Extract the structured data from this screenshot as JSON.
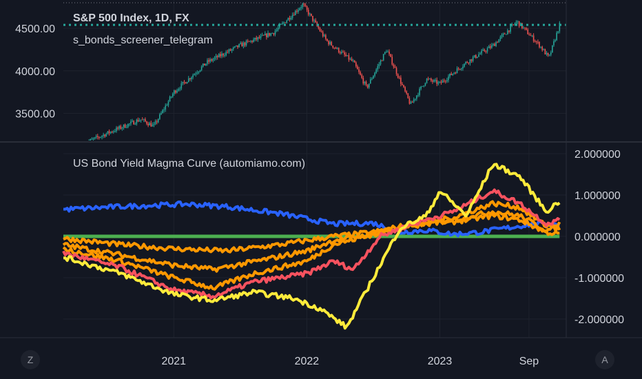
{
  "header": {
    "symbol_title": "S&P 500 Index, 1D, FX",
    "author": "s_bonds_screener_telegram"
  },
  "indicator": {
    "title": "US Bond Yield Magma Curve (automiamo.com)"
  },
  "buttons": {
    "left": "Z",
    "right": "A"
  },
  "colors": {
    "background": "#131722",
    "grid": "#1e222d",
    "up_candle": "#26a69a",
    "down_candle": "#ef5350",
    "price_line": "#26a69a",
    "blue": "#2962ff",
    "green": "#4caf50",
    "orange": "#ff9800",
    "red": "#f7525f",
    "yellow": "#ffeb3b"
  },
  "chart_data": [
    {
      "type": "candlestick",
      "title": "S&P 500 Index, 1D, FX",
      "y_ticks": [
        "3500.00",
        "4000.00",
        "4500.00"
      ],
      "y_tick_values": [
        3500,
        4000,
        4500
      ],
      "ylim": [
        3180,
        4800
      ],
      "last_price": 4540,
      "x_ticks": [
        "2021",
        "2022",
        "2023",
        "Sep"
      ],
      "x_tick_values": [
        2021.0,
        2022.0,
        2023.0,
        2023.67
      ],
      "xlim": [
        2020.17,
        2023.95
      ],
      "price_path": [
        [
          2020.33,
          3150
        ],
        [
          2020.55,
          3300
        ],
        [
          2020.75,
          3430
        ],
        [
          2020.85,
          3350
        ],
        [
          2021.0,
          3750
        ],
        [
          2021.25,
          4100
        ],
        [
          2021.5,
          4300
        ],
        [
          2021.75,
          4450
        ],
        [
          2021.97,
          4780
        ],
        [
          2022.15,
          4350
        ],
        [
          2022.35,
          4100
        ],
        [
          2022.45,
          3800
        ],
        [
          2022.6,
          4250
        ],
        [
          2022.78,
          3600
        ],
        [
          2022.9,
          3900
        ],
        [
          2023.0,
          3850
        ],
        [
          2023.2,
          4100
        ],
        [
          2023.4,
          4300
        ],
        [
          2023.58,
          4580
        ],
        [
          2023.75,
          4300
        ],
        [
          2023.82,
          4150
        ],
        [
          2023.9,
          4540
        ]
      ]
    },
    {
      "type": "line",
      "title": "US Bond Yield Magma Curve (automiamo.com)",
      "y_ticks": [
        "2.000000",
        "1.000000",
        "0.000000",
        "-1.000000",
        "-2.000000"
      ],
      "y_tick_values": [
        2,
        1,
        0,
        -1,
        -2
      ],
      "ylim": [
        -2.45,
        2.25
      ],
      "x_ticks": [
        "2021",
        "2022",
        "2023",
        "Sep"
      ],
      "x_tick_values": [
        2021.0,
        2022.0,
        2023.0,
        2023.67
      ],
      "xlim": [
        2020.17,
        2023.95
      ],
      "series": [
        {
          "color": "#4caf50",
          "points": [
            [
              2020.17,
              0.0
            ],
            [
              2023.9,
              0.0
            ]
          ]
        },
        {
          "color": "#2962ff",
          "points": [
            [
              2020.17,
              0.65
            ],
            [
              2020.6,
              0.72
            ],
            [
              2021.1,
              0.78
            ],
            [
              2021.4,
              0.72
            ],
            [
              2021.8,
              0.55
            ],
            [
              2022.2,
              0.3
            ],
            [
              2022.5,
              0.32
            ],
            [
              2022.7,
              0.1
            ],
            [
              2022.9,
              0.15
            ],
            [
              2023.1,
              0.05
            ],
            [
              2023.3,
              0.1
            ],
            [
              2023.5,
              0.2
            ],
            [
              2023.7,
              0.3
            ],
            [
              2023.9,
              0.3
            ]
          ]
        },
        {
          "color": "#ff9800",
          "points": [
            [
              2020.17,
              -0.05
            ],
            [
              2020.6,
              -0.2
            ],
            [
              2021.0,
              -0.3
            ],
            [
              2021.4,
              -0.35
            ],
            [
              2021.8,
              -0.2
            ],
            [
              2022.2,
              0.0
            ],
            [
              2022.5,
              0.1
            ],
            [
              2022.8,
              0.3
            ],
            [
              2023.1,
              0.35
            ],
            [
              2023.4,
              0.5
            ],
            [
              2023.6,
              0.4
            ],
            [
              2023.8,
              0.1
            ],
            [
              2023.9,
              0.05
            ]
          ]
        },
        {
          "color": "#ff9800",
          "points": [
            [
              2020.17,
              -0.2
            ],
            [
              2020.6,
              -0.45
            ],
            [
              2021.0,
              -0.7
            ],
            [
              2021.3,
              -0.8
            ],
            [
              2021.7,
              -0.55
            ],
            [
              2022.0,
              -0.35
            ],
            [
              2022.2,
              -0.1
            ],
            [
              2022.5,
              0.05
            ],
            [
              2022.8,
              0.25
            ],
            [
              2023.1,
              0.4
            ],
            [
              2023.4,
              0.6
            ],
            [
              2023.6,
              0.5
            ],
            [
              2023.8,
              0.15
            ],
            [
              2023.9,
              0.2
            ]
          ]
        },
        {
          "color": "#ff9800",
          "points": [
            [
              2020.17,
              -0.3
            ],
            [
              2020.6,
              -0.6
            ],
            [
              2021.0,
              -1.0
            ],
            [
              2021.3,
              -1.25
            ],
            [
              2021.6,
              -0.9
            ],
            [
              2022.0,
              -0.6
            ],
            [
              2022.2,
              -0.2
            ],
            [
              2022.5,
              0.05
            ],
            [
              2022.8,
              0.3
            ],
            [
              2023.1,
              0.45
            ],
            [
              2023.4,
              0.8
            ],
            [
              2023.6,
              0.7
            ],
            [
              2023.8,
              0.25
            ],
            [
              2023.9,
              0.3
            ]
          ]
        },
        {
          "color": "#f7525f",
          "points": [
            [
              2020.17,
              -0.4
            ],
            [
              2020.6,
              -0.75
            ],
            [
              2021.0,
              -1.3
            ],
            [
              2021.3,
              -1.45
            ],
            [
              2021.6,
              -1.1
            ],
            [
              2022.0,
              -0.9
            ],
            [
              2022.2,
              -0.6
            ],
            [
              2022.35,
              -0.8
            ],
            [
              2022.55,
              0.0
            ],
            [
              2022.8,
              0.3
            ],
            [
              2023.1,
              0.6
            ],
            [
              2023.4,
              1.1
            ],
            [
              2023.6,
              0.8
            ],
            [
              2023.8,
              0.3
            ],
            [
              2023.9,
              0.4
            ]
          ]
        },
        {
          "color": "#ffeb3b",
          "points": [
            [
              2020.17,
              -0.5
            ],
            [
              2020.6,
              -0.9
            ],
            [
              2021.0,
              -1.4
            ],
            [
              2021.3,
              -1.55
            ],
            [
              2021.6,
              -1.35
            ],
            [
              2021.9,
              -1.5
            ],
            [
              2022.1,
              -1.75
            ],
            [
              2022.3,
              -2.2
            ],
            [
              2022.5,
              -1.0
            ],
            [
              2022.7,
              0.2
            ],
            [
              2022.9,
              0.5
            ],
            [
              2023.0,
              1.1
            ],
            [
              2023.2,
              0.5
            ],
            [
              2023.4,
              1.75
            ],
            [
              2023.6,
              1.45
            ],
            [
              2023.8,
              0.6
            ],
            [
              2023.9,
              0.85
            ]
          ]
        }
      ]
    }
  ]
}
